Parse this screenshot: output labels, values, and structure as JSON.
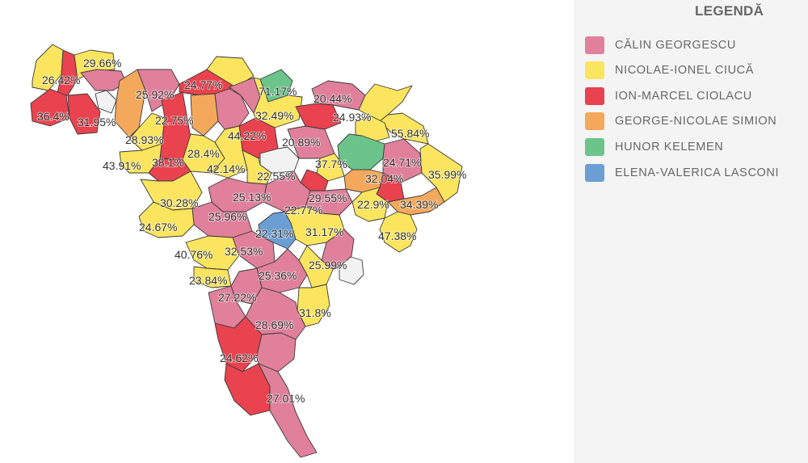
{
  "legend": {
    "title": "LEGENDĂ",
    "items": [
      {
        "label": "CĂLIN GEORGESCU",
        "color": "#e0809a"
      },
      {
        "label": "NICOLAE-IONEL CIUCĂ",
        "color": "#fbe45e"
      },
      {
        "label": "ION-MARCEL CIOLACU",
        "color": "#e8434f"
      },
      {
        "label": "GEORGE-NICOLAE SIMION",
        "color": "#f4a85c"
      },
      {
        "label": "HUNOR KELEMEN",
        "color": "#6cc48a"
      },
      {
        "label": "ELENA-VALERICA LASCONI",
        "color": "#6b9fd4"
      }
    ]
  },
  "map": {
    "no_data_color": "#f2f2f2",
    "labels": [
      "29.66%",
      "26.42%",
      "36.4%",
      "31.95%",
      "25.92%",
      "24.77%",
      "71.17%",
      "20.44%",
      "24.93%",
      "32.49%",
      "55.84%",
      "22.75%",
      "44.22%",
      "28.93%",
      "20.89%",
      "43.91%",
      "38.1%",
      "28.4%",
      "42.14%",
      "37.7%",
      "24.71%",
      "35.99%",
      "22.55%",
      "32.04%",
      "25.13%",
      "29.55%",
      "30.28%",
      "22.9%",
      "34.39%",
      "25.96%",
      "22.77%",
      "24.67%",
      "22.31%",
      "31.17%",
      "47.38%",
      "40.76%",
      "32.53%",
      "25.99%",
      "23.84%",
      "25.36%",
      "27.22%",
      "31.8%",
      "28.69%",
      "24.62%",
      "27.01%"
    ]
  }
}
